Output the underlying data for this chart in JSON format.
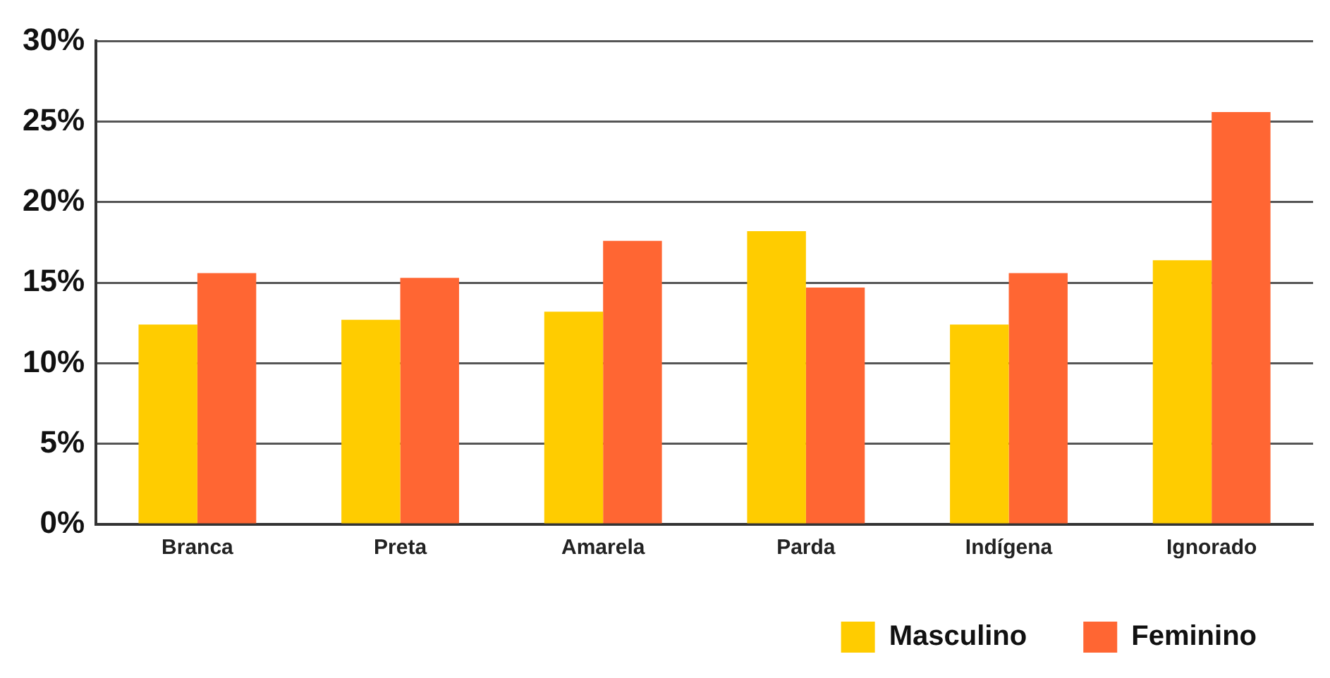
{
  "chart_data": {
    "type": "bar",
    "categories": [
      "Branca",
      "Preta",
      "Amarela",
      "Parda",
      "Indígena",
      "Ignorado"
    ],
    "series": [
      {
        "name": "Masculino",
        "color": "#ffcc00",
        "values": [
          12.4,
          12.7,
          13.2,
          18.2,
          12.4,
          16.4
        ]
      },
      {
        "name": "Feminino",
        "color": "#ff6633",
        "values": [
          15.6,
          15.3,
          17.6,
          14.7,
          15.6,
          25.6
        ]
      }
    ],
    "ylim": [
      0,
      30
    ],
    "yticks": [
      {
        "value": 0,
        "label": "0%"
      },
      {
        "value": 5,
        "label": "5%"
      },
      {
        "value": 10,
        "label": "10%"
      },
      {
        "value": 15,
        "label": "15%"
      },
      {
        "value": 20,
        "label": "20%"
      },
      {
        "value": 25,
        "label": "25%"
      },
      {
        "value": 30,
        "label": "30%"
      }
    ],
    "grid": "y",
    "legend": "bottom right"
  }
}
